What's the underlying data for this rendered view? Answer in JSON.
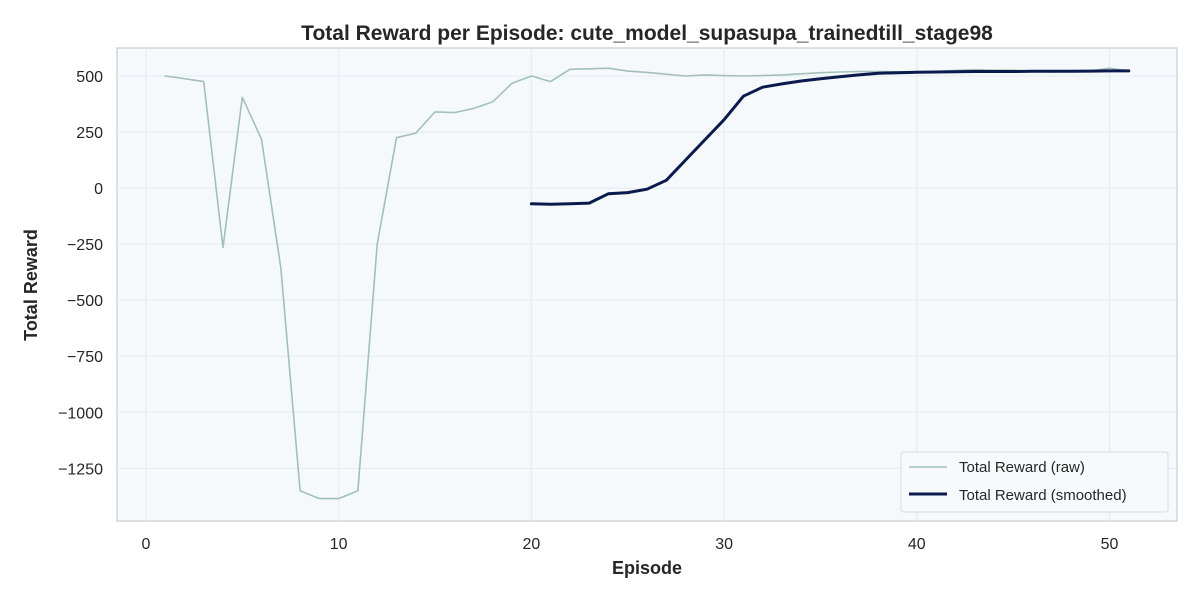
{
  "chart_data": {
    "type": "line",
    "title": "Total Reward per Episode: cute_model_supasupa_trainedtill_stage98",
    "xlabel": "Episode",
    "ylabel": "Total Reward",
    "xlim": [
      -1.5,
      53.5
    ],
    "ylim": [
      -1485,
      625
    ],
    "xticks": [
      0,
      10,
      20,
      30,
      40,
      50
    ],
    "xtick_labels": [
      "0",
      "10",
      "20",
      "30",
      "40",
      "50"
    ],
    "yticks": [
      500,
      250,
      0,
      -250,
      -500,
      -750,
      -1000,
      -1250
    ],
    "ytick_labels": [
      "500",
      "250",
      "0",
      "−250",
      "−500",
      "−750",
      "−1000",
      "−1250"
    ],
    "grid": true,
    "legend_position": "lower-right",
    "colors": {
      "plot_background": "#f5f9fc",
      "grid": "#e4eaee",
      "raw": "#a3c0b8",
      "smoothed": "#0b1a4d"
    },
    "series": [
      {
        "name": "Total Reward (raw)",
        "x": [
          1,
          2,
          3,
          4,
          5,
          6,
          7,
          8,
          9,
          10,
          11,
          12,
          13,
          14,
          15,
          16,
          17,
          18,
          19,
          20,
          21,
          22,
          23,
          24,
          25,
          26,
          27,
          28,
          29,
          30,
          31,
          32,
          33,
          34,
          35,
          36,
          37,
          38,
          39,
          40,
          41,
          42,
          43,
          44,
          45,
          46,
          47,
          48,
          49,
          50,
          51
        ],
        "values": [
          500,
          488,
          475,
          -265,
          405,
          218,
          -355,
          -1350,
          -1385,
          -1385,
          -1350,
          -250,
          225,
          245,
          340,
          337,
          355,
          385,
          468,
          500,
          475,
          530,
          532,
          535,
          522,
          516,
          508,
          500,
          505,
          502,
          500,
          502,
          505,
          510,
          515,
          518,
          520,
          520,
          519,
          518,
          520,
          525,
          528,
          526,
          526,
          520,
          518,
          520,
          522,
          535,
          522
        ]
      },
      {
        "name": "Total Reward (smoothed)",
        "x": [
          20,
          21,
          22,
          23,
          24,
          25,
          26,
          27,
          28,
          29,
          30,
          31,
          32,
          33,
          34,
          35,
          36,
          37,
          38,
          39,
          40,
          41,
          42,
          43,
          44,
          45,
          46,
          47,
          48,
          49,
          50,
          51
        ],
        "values": [
          -70,
          -72,
          -70,
          -67,
          -25,
          -20,
          -5,
          35,
          125,
          215,
          305,
          410,
          450,
          465,
          478,
          488,
          497,
          505,
          512,
          515,
          517,
          518,
          519,
          520,
          520,
          520,
          521,
          521,
          521,
          522,
          523,
          523
        ]
      }
    ]
  }
}
